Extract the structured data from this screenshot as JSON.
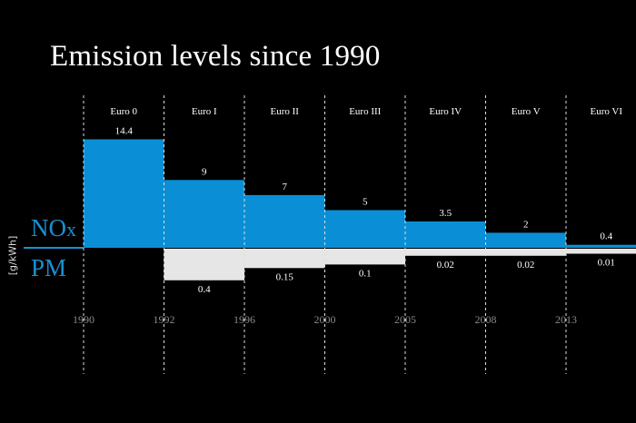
{
  "chart_data": {
    "type": "bar",
    "title": "Emission levels since 1990",
    "ylabel": "[g/kWh]",
    "series_labels": {
      "nox": "NO",
      "nox_sub": "x",
      "pm": "PM"
    },
    "categories": [
      "Euro 0",
      "Euro I",
      "Euro II",
      "Euro III",
      "Euro IV",
      "Euro V",
      "Euro VI"
    ],
    "years": [
      "1990",
      "1992",
      "1996",
      "2000",
      "2005",
      "2008",
      "2013"
    ],
    "series": [
      {
        "name": "NOx",
        "values": [
          14.4,
          9,
          7,
          5,
          3.5,
          2,
          0.4
        ],
        "labels": [
          "14.4",
          "9",
          "7",
          "5",
          "3.5",
          "2",
          "0.4"
        ],
        "color": "#0a8fd6"
      },
      {
        "name": "PM",
        "values": [
          null,
          0.4,
          0.15,
          0.1,
          0.02,
          0.02,
          0.01
        ],
        "labels": [
          "",
          "0.4",
          "0.15",
          "0.1",
          "0.02",
          "0.02",
          "0.01"
        ],
        "color": "#e6e6e6"
      }
    ]
  }
}
